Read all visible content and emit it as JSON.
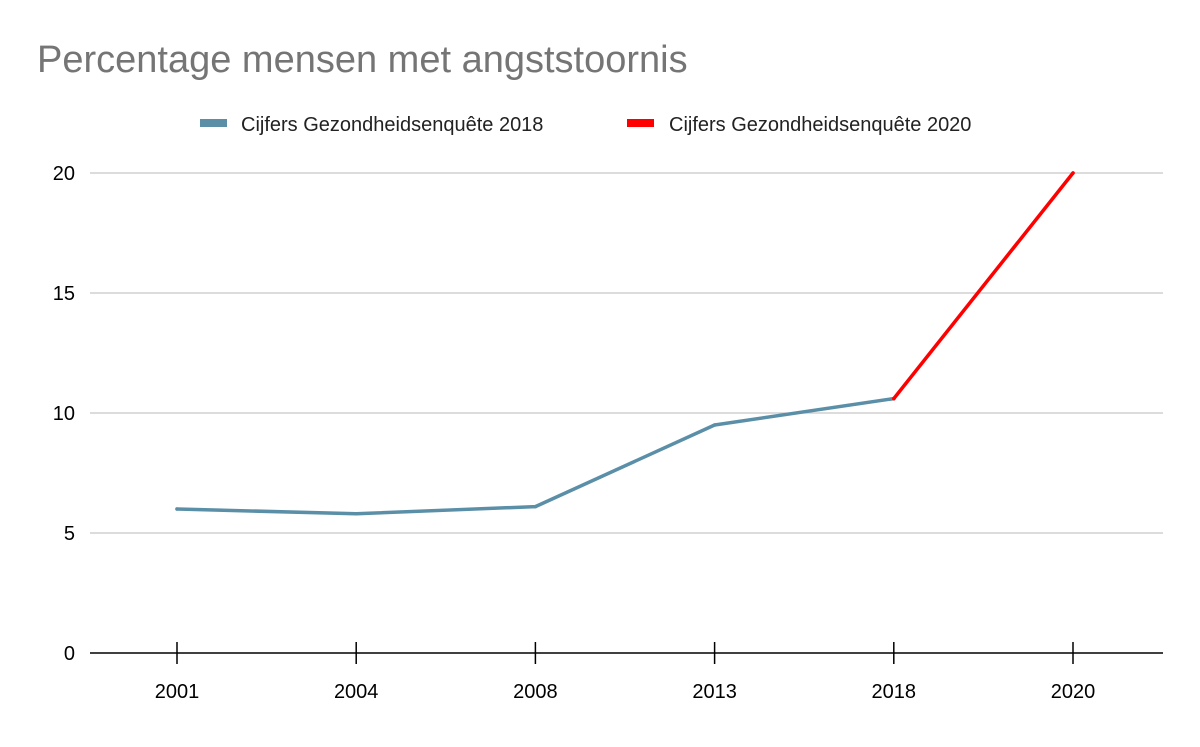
{
  "chart_data": {
    "type": "line",
    "title": "Percentage mensen met angststoornis",
    "xlabel": "",
    "ylabel": "",
    "categories": [
      "2001",
      "2004",
      "2008",
      "2013",
      "2018",
      "2020"
    ],
    "ylim": [
      0,
      20
    ],
    "yticks": [
      0,
      5,
      10,
      15,
      20
    ],
    "grid": true,
    "legend_position": "top",
    "series": [
      {
        "name": "Cijfers Gezondheidsenquête 2018",
        "color": "#5b8fa8",
        "points": [
          {
            "x": "2001",
            "y": 6.0
          },
          {
            "x": "2004",
            "y": 5.8
          },
          {
            "x": "2008",
            "y": 6.1
          },
          {
            "x": "2013",
            "y": 9.5
          },
          {
            "x": "2018",
            "y": 10.6
          }
        ]
      },
      {
        "name": "Cijfers Gezondheidsenquête 2020",
        "color": "#ff0000",
        "points": [
          {
            "x": "2018",
            "y": 10.6
          },
          {
            "x": "2020",
            "y": 20.0
          }
        ]
      }
    ]
  }
}
